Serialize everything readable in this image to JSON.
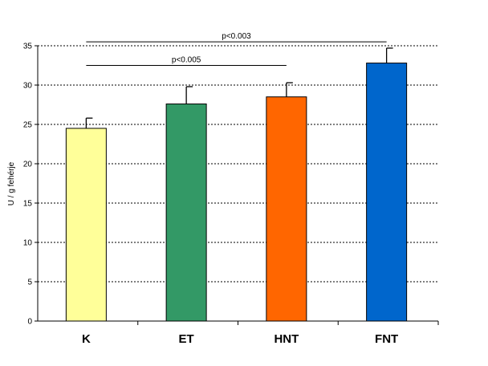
{
  "chart_data": {
    "type": "bar",
    "title": "",
    "xlabel": "",
    "ylabel": "U / g fehérje",
    "ylim": [
      0,
      35
    ],
    "yticks": [
      0,
      5,
      10,
      15,
      20,
      25,
      30,
      35
    ],
    "grid": true,
    "categories": [
      "K",
      "ET",
      "HNT",
      "FNT"
    ],
    "values": [
      24.5,
      27.6,
      28.5,
      32.8
    ],
    "errors": [
      1.3,
      2.2,
      1.8,
      1.9
    ],
    "colors": [
      "#FFFF99",
      "#339966",
      "#FF6600",
      "#0066CC"
    ],
    "annotations": [
      {
        "text": "p<0.005",
        "from": 0,
        "to": 2,
        "y": 32.5
      },
      {
        "text": "p<0.003",
        "from": 0,
        "to": 3,
        "y": 35.5
      }
    ]
  }
}
